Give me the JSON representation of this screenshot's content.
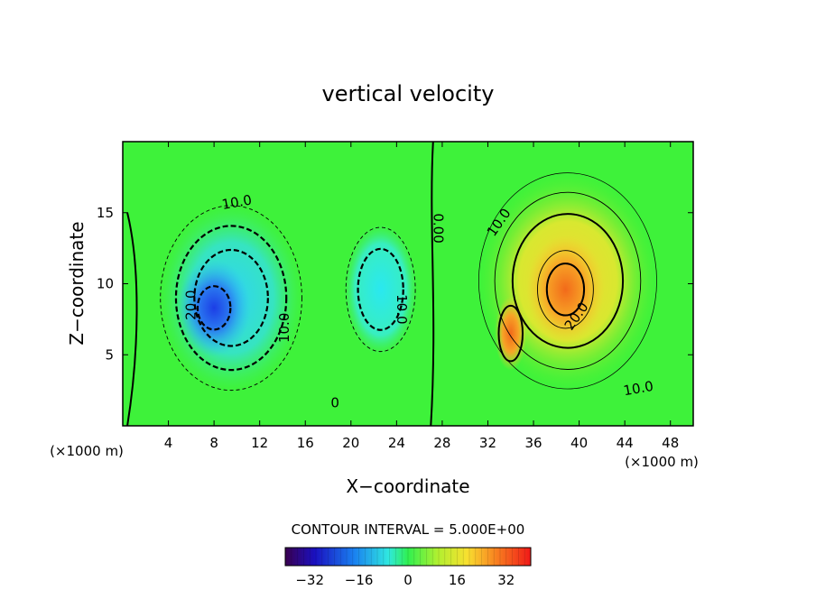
{
  "chart_data": {
    "type": "heatmap",
    "title": "vertical velocity",
    "xlabel": "X−coordinate",
    "ylabel": "Z−coordinate",
    "x_unit_label": "(×1000 m)",
    "y_unit_label": "(×1000 m)",
    "xlim": [
      0,
      50
    ],
    "ylim": [
      0,
      20
    ],
    "x_ticks": [
      "4",
      "8",
      "12",
      "16",
      "20",
      "24",
      "28",
      "32",
      "36",
      "40",
      "44",
      "48"
    ],
    "y_ticks": [
      "5",
      "10",
      "15"
    ],
    "contour_interval_text": "CONTOUR INTERVAL = 5.000E+00",
    "contour_labels": [
      {
        "text": "10.0",
        "x": 10,
        "z": 15.7,
        "rot": -10
      },
      {
        "text": "20.0",
        "x": 6,
        "z": 8.5,
        "rot": -90
      },
      {
        "text": "10.0",
        "x": 14.2,
        "z": 6.9,
        "rot": -90
      },
      {
        "text": "10.0",
        "x": 24.4,
        "z": 8.2,
        "rot": 90
      },
      {
        "text": "0.00",
        "x": 27.6,
        "z": 13.9,
        "rot": 90
      },
      {
        "text": "0",
        "x": 18.6,
        "z": 1.6,
        "rot": 0
      },
      {
        "text": "10.0",
        "x": 33,
        "z": 14.3,
        "rot": -55
      },
      {
        "text": "20.0",
        "x": 39.8,
        "z": 7.7,
        "rot": -55
      },
      {
        "text": "10.0",
        "x": 45.2,
        "z": 2.6,
        "rot": -10
      }
    ],
    "field_cells": [
      {
        "name": "downdraft-outer",
        "sign": -1,
        "x": 9.5,
        "z": 9.0,
        "rx": 6.2,
        "rz": 6.5,
        "value": -12
      },
      {
        "name": "downdraft-core",
        "sign": -1,
        "x": 8.0,
        "z": 8.3,
        "rx": 3.2,
        "rz": 3.4,
        "value": -28
      },
      {
        "name": "downdraft-secondary",
        "sign": -1,
        "x": 22.6,
        "z": 9.6,
        "rx": 3.2,
        "rz": 4.6,
        "value": -14
      },
      {
        "name": "updraft-outer",
        "sign": 1,
        "x": 39.0,
        "z": 10.2,
        "rx": 7.8,
        "rz": 7.6,
        "value": 14
      },
      {
        "name": "updraft-core",
        "sign": 1,
        "x": 38.8,
        "z": 9.6,
        "rx": 3.4,
        "rz": 3.8,
        "value": 26
      },
      {
        "name": "updraft-core-left",
        "sign": 1,
        "x": 34.0,
        "z": 6.5,
        "rx": 1.4,
        "rz": 2.6,
        "value": 24
      }
    ],
    "colorbar": {
      "range": [
        -40,
        40
      ],
      "tick_labels": [
        "−32",
        "−16",
        "0",
        "16",
        "32"
      ],
      "tick_values": [
        -32,
        -16,
        0,
        16,
        32
      ]
    },
    "grid": false
  }
}
